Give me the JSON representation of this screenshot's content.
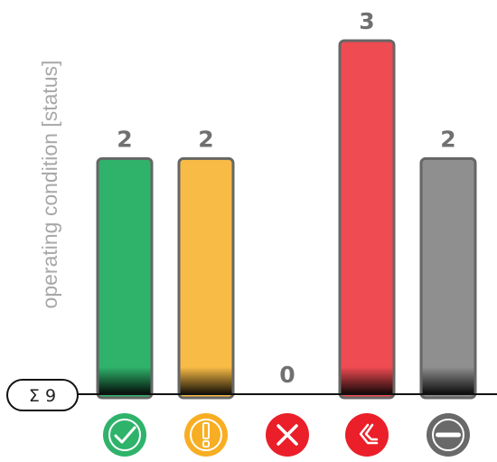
{
  "chart_data": {
    "type": "bar",
    "ylabel": "operating condition [status]",
    "categories": [
      "ok",
      "warning",
      "error",
      "critical",
      "inactive"
    ],
    "values": [
      2,
      2,
      0,
      3,
      2
    ],
    "ylim": [
      0,
      3
    ],
    "grid": false,
    "total_label": "Σ 9",
    "bar_colors": [
      "#2fb36b",
      "#f8bb46",
      "#f0454d",
      "#ef4b52",
      "#8f8f8f"
    ],
    "icons": [
      {
        "name": "check-icon",
        "color": "#2fb36b"
      },
      {
        "name": "exclamation-icon",
        "color": "#f8ae23"
      },
      {
        "name": "cross-icon",
        "color": "#ea1f29"
      },
      {
        "name": "double-chevron-icon",
        "color": "#ea1f29"
      },
      {
        "name": "minus-icon",
        "color": "#696969"
      }
    ]
  }
}
